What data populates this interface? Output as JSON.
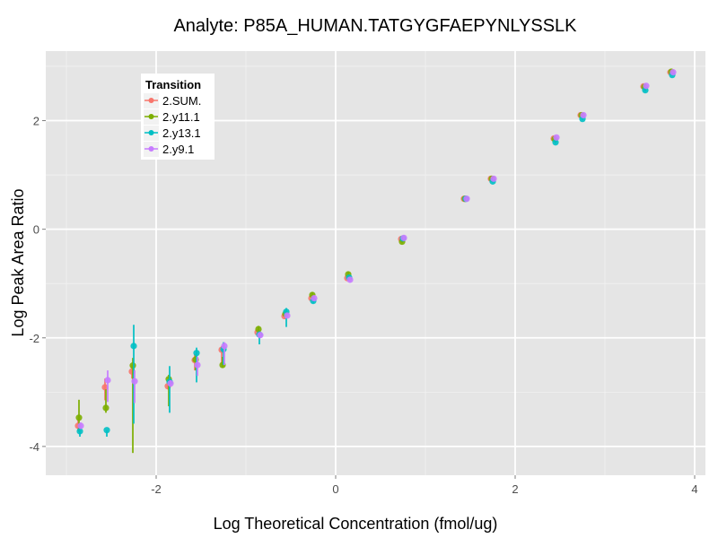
{
  "chart_data": {
    "type": "scatter",
    "title": "Analyte: P85A_HUMAN.TATGYGFAEPYNLYSSLK",
    "xlabel": "Log Theoretical Concentration (fmol/ug)",
    "ylabel": "Log Peak Area Ratio",
    "xlim": [
      -3.23,
      4.12
    ],
    "ylim": [
      -4.53,
      3.28
    ],
    "xticks": [
      -2,
      0,
      2,
      4
    ],
    "yticks": [
      -4,
      -2,
      0,
      2
    ],
    "xtick_labels": [
      "-2",
      "0",
      "2",
      "4"
    ],
    "ytick_labels": [
      "-4",
      "-2",
      "0",
      "2"
    ],
    "grid": true,
    "legend": {
      "title": "Transition",
      "placement": "top-left",
      "entries": [
        "2.SUM.",
        "2.y11.1",
        "2.y13.1",
        "2.y9.1"
      ]
    },
    "series": [
      {
        "name": "2.SUM.",
        "color": "#F8766D",
        "points": [
          {
            "x": -2.87,
            "y": -3.62,
            "ymin": -3.72,
            "ymax": -3.5
          },
          {
            "x": -2.57,
            "y": -2.91,
            "ymin": -3.15,
            "ymax": -2.75
          },
          {
            "x": -2.27,
            "y": -2.62,
            "ymin": -2.75,
            "ymax": -2.5
          },
          {
            "x": -1.87,
            "y": -2.89,
            "ymin": -2.95,
            "ymax": -2.8
          },
          {
            "x": -1.57,
            "y": -2.41,
            "ymin": -2.6,
            "ymax": -2.3
          },
          {
            "x": -1.27,
            "y": -2.22,
            "ymin": -2.5,
            "ymax": -2.15
          },
          {
            "x": -0.87,
            "y": -1.9,
            "ymin": -1.95,
            "ymax": -1.85
          },
          {
            "x": -0.57,
            "y": -1.6,
            "ymin": -1.65,
            "ymax": -1.55
          },
          {
            "x": -0.27,
            "y": -1.27,
            "ymin": -1.3,
            "ymax": -1.22
          },
          {
            "x": 0.13,
            "y": -0.9,
            "ymin": -0.95,
            "ymax": -0.85
          },
          {
            "x": 0.73,
            "y": -0.18,
            "ymin": -0.2,
            "ymax": -0.15
          },
          {
            "x": 1.43,
            "y": 0.56,
            "ymin": 0.54,
            "ymax": 0.58
          },
          {
            "x": 1.73,
            "y": 0.93,
            "ymin": 0.91,
            "ymax": 0.95
          },
          {
            "x": 2.43,
            "y": 1.67,
            "ymin": 1.65,
            "ymax": 1.69
          },
          {
            "x": 2.73,
            "y": 2.1,
            "ymin": 2.08,
            "ymax": 2.12
          },
          {
            "x": 3.43,
            "y": 2.63,
            "ymin": 2.61,
            "ymax": 2.65
          },
          {
            "x": 3.73,
            "y": 2.89,
            "ymin": 2.87,
            "ymax": 2.91
          }
        ]
      },
      {
        "name": "2.y11.1",
        "color": "#7CAE00",
        "points": [
          {
            "x": -2.86,
            "y": -3.47,
            "ymin": -3.73,
            "ymax": -3.14
          },
          {
            "x": -2.56,
            "y": -3.29,
            "ymin": -3.38,
            "ymax": -2.95
          },
          {
            "x": -2.26,
            "y": -2.51,
            "ymin": -4.12,
            "ymax": -2.37
          },
          {
            "x": -1.86,
            "y": -2.76,
            "ymin": -3.26,
            "ymax": -2.68
          },
          {
            "x": -1.56,
            "y": -2.4,
            "ymin": -2.6,
            "ymax": -2.3
          },
          {
            "x": -1.26,
            "y": -2.5,
            "ymin": -2.55,
            "ymax": -2.35
          },
          {
            "x": -0.86,
            "y": -1.84,
            "ymin": -1.9,
            "ymax": -1.78
          },
          {
            "x": -0.56,
            "y": -1.56,
            "ymin": -1.6,
            "ymax": -1.52
          },
          {
            "x": -0.26,
            "y": -1.21,
            "ymin": -1.26,
            "ymax": -1.16
          },
          {
            "x": 0.14,
            "y": -0.83,
            "ymin": -0.88,
            "ymax": -0.78
          },
          {
            "x": 0.74,
            "y": -0.23,
            "ymin": -0.26,
            "ymax": -0.2
          },
          {
            "x": 1.44,
            "y": 0.56,
            "ymin": 0.54,
            "ymax": 0.58
          },
          {
            "x": 1.74,
            "y": 0.93,
            "ymin": 0.91,
            "ymax": 0.95
          },
          {
            "x": 2.44,
            "y": 1.66,
            "ymin": 1.64,
            "ymax": 1.68
          },
          {
            "x": 2.74,
            "y": 2.1,
            "ymin": 2.08,
            "ymax": 2.12
          },
          {
            "x": 3.44,
            "y": 2.62,
            "ymin": 2.6,
            "ymax": 2.64
          },
          {
            "x": 3.74,
            "y": 2.9,
            "ymin": 2.88,
            "ymax": 2.92
          }
        ]
      },
      {
        "name": "2.y13.1",
        "color": "#00BFC4",
        "points": [
          {
            "x": -2.85,
            "y": -3.72,
            "ymin": -3.82,
            "ymax": -3.66
          },
          {
            "x": -2.55,
            "y": -3.7,
            "ymin": -3.82,
            "ymax": -3.7
          },
          {
            "x": -2.25,
            "y": -2.15,
            "ymin": -3.58,
            "ymax": -1.76
          },
          {
            "x": -1.85,
            "y": -2.81,
            "ymin": -3.38,
            "ymax": -2.52
          },
          {
            "x": -1.55,
            "y": -2.28,
            "ymin": -2.82,
            "ymax": -2.18
          },
          {
            "x": -1.25,
            "y": -2.21,
            "ymin": -2.5,
            "ymax": -2.08
          },
          {
            "x": -0.85,
            "y": -1.94,
            "ymin": -2.12,
            "ymax": -1.88
          },
          {
            "x": -0.55,
            "y": -1.52,
            "ymin": -1.8,
            "ymax": -1.45
          },
          {
            "x": -0.25,
            "y": -1.32,
            "ymin": -1.36,
            "ymax": -1.28
          },
          {
            "x": 0.15,
            "y": -0.89,
            "ymin": -0.92,
            "ymax": -0.86
          },
          {
            "x": 0.75,
            "y": -0.17,
            "ymin": -0.2,
            "ymax": -0.14
          },
          {
            "x": 1.45,
            "y": 0.56,
            "ymin": 0.54,
            "ymax": 0.58
          },
          {
            "x": 1.75,
            "y": 0.88,
            "ymin": 0.86,
            "ymax": 0.9
          },
          {
            "x": 2.45,
            "y": 1.6,
            "ymin": 1.58,
            "ymax": 1.62
          },
          {
            "x": 2.75,
            "y": 2.03,
            "ymin": 2.01,
            "ymax": 2.05
          },
          {
            "x": 3.45,
            "y": 2.56,
            "ymin": 2.54,
            "ymax": 2.58
          },
          {
            "x": 3.75,
            "y": 2.84,
            "ymin": 2.82,
            "ymax": 2.86
          }
        ]
      },
      {
        "name": "2.y9.1",
        "color": "#C77CFF",
        "points": [
          {
            "x": -2.84,
            "y": -3.62,
            "ymin": -3.68,
            "ymax": -3.56
          },
          {
            "x": -2.54,
            "y": -2.78,
            "ymin": -3.18,
            "ymax": -2.6
          },
          {
            "x": -2.24,
            "y": -2.8,
            "ymin": -3.2,
            "ymax": -2.6
          },
          {
            "x": -1.84,
            "y": -2.84,
            "ymin": -2.9,
            "ymax": -2.78
          },
          {
            "x": -1.54,
            "y": -2.5,
            "ymin": -2.7,
            "ymax": -2.35
          },
          {
            "x": -1.24,
            "y": -2.15,
            "ymin": -2.5,
            "ymax": -2.08
          },
          {
            "x": -0.84,
            "y": -1.95,
            "ymin": -2.0,
            "ymax": -1.9
          },
          {
            "x": -0.54,
            "y": -1.59,
            "ymin": -1.63,
            "ymax": -1.55
          },
          {
            "x": -0.24,
            "y": -1.27,
            "ymin": -1.31,
            "ymax": -1.23
          },
          {
            "x": 0.16,
            "y": -0.93,
            "ymin": -0.97,
            "ymax": -0.89
          },
          {
            "x": 0.76,
            "y": -0.16,
            "ymin": -0.19,
            "ymax": -0.13
          },
          {
            "x": 1.46,
            "y": 0.56,
            "ymin": 0.54,
            "ymax": 0.58
          },
          {
            "x": 1.76,
            "y": 0.93,
            "ymin": 0.91,
            "ymax": 0.95
          },
          {
            "x": 2.46,
            "y": 1.69,
            "ymin": 1.67,
            "ymax": 1.71
          },
          {
            "x": 2.76,
            "y": 2.1,
            "ymin": 2.08,
            "ymax": 2.12
          },
          {
            "x": 3.46,
            "y": 2.64,
            "ymin": 2.62,
            "ymax": 2.66
          },
          {
            "x": 3.76,
            "y": 2.89,
            "ymin": 2.87,
            "ymax": 2.91
          }
        ]
      }
    ]
  }
}
